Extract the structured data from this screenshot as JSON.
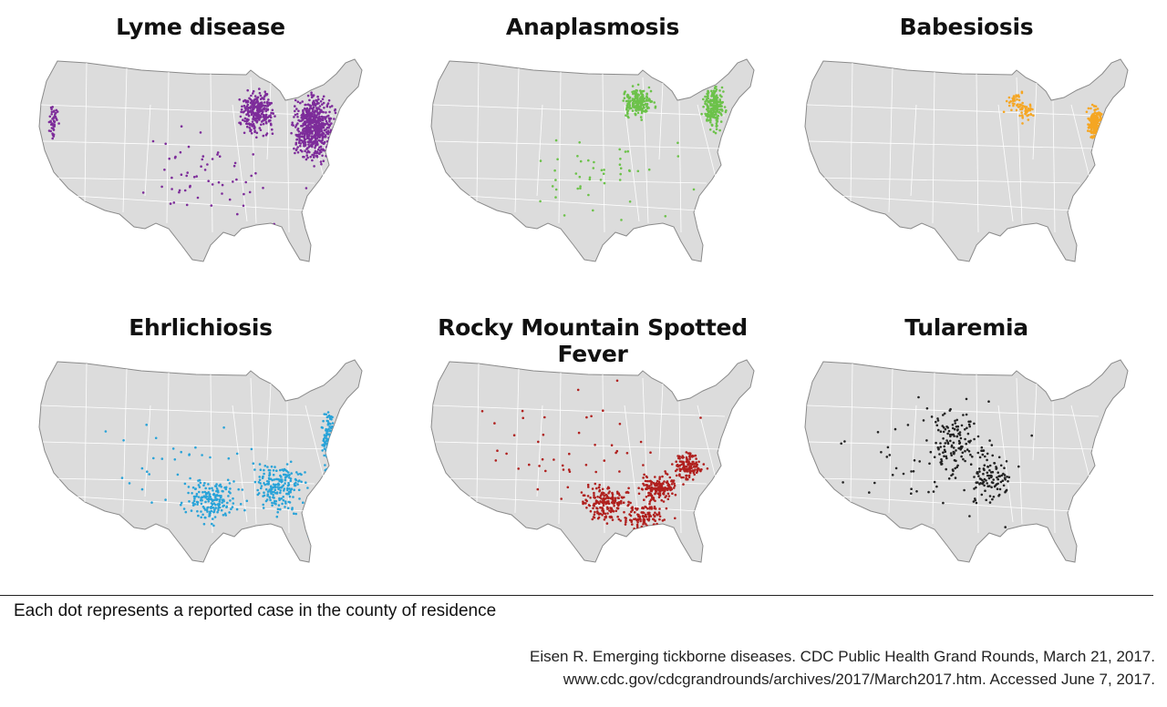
{
  "maps": [
    {
      "title": "Lyme disease",
      "color": "#7d2c9a",
      "concentration": "Northeast, upper Midwest, Pacific coast"
    },
    {
      "title": "Anaplasmosis",
      "color": "#6cc24a",
      "concentration": "Upper Midwest, Northeast"
    },
    {
      "title": "Babesiosis",
      "color": "#f5a623",
      "concentration": "Northeast, upper Midwest"
    },
    {
      "title": "Ehrlichiosis",
      "color": "#29a3d8",
      "concentration": "South-central, Southeast, mid-Atlantic"
    },
    {
      "title": "Rocky Mountain Spotted Fever",
      "color": "#b0201e",
      "concentration": "South-central, Southeast"
    },
    {
      "title": "Tularemia",
      "color": "#222222",
      "concentration": "Central plains, scattered"
    }
  ],
  "caption": "Each dot represents a reported case in the county of residence",
  "citation": {
    "line1": "Eisen R. Emerging tickborne diseases. CDC Public Health Grand Rounds, March 21, 2017.",
    "line2": "www.cdc.gov/cdcgrandrounds/archives/2017/March2017.htm. Accessed June 7, 2017."
  }
}
